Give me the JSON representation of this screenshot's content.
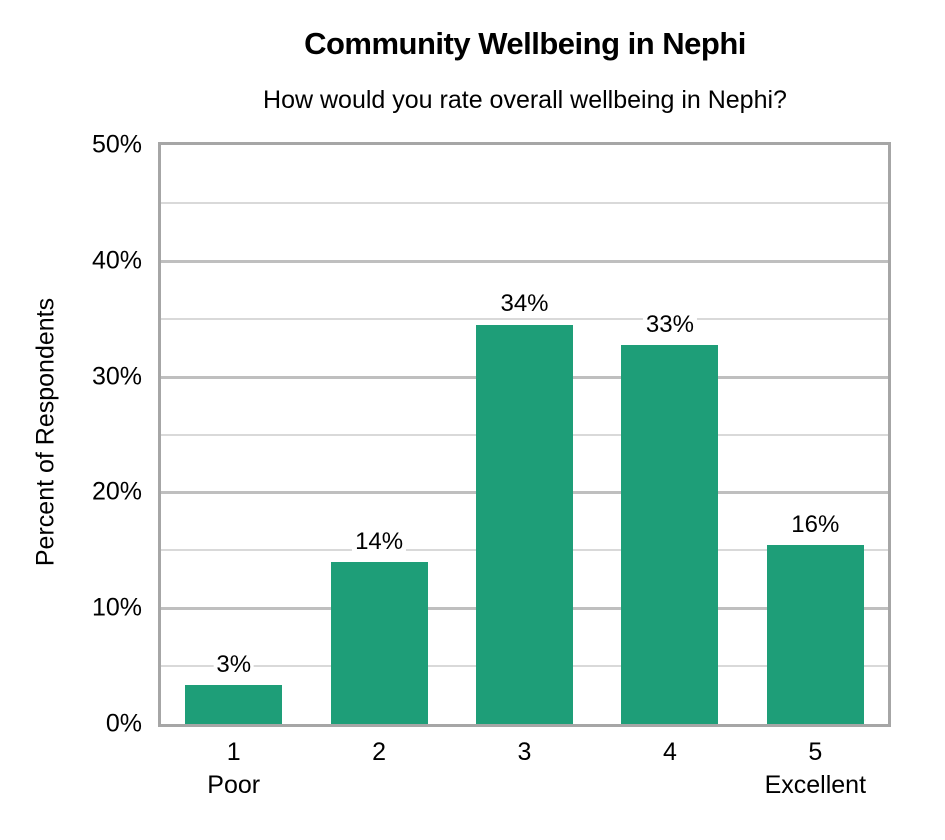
{
  "chart_data": {
    "type": "bar",
    "title": "Community Wellbeing in Nephi",
    "subtitle": "How would you rate overall wellbeing in Nephi?",
    "xlabel": "",
    "ylabel": "Percent of Respondents",
    "categories": [
      "1",
      "2",
      "3",
      "4",
      "5"
    ],
    "category_sublabels": [
      "Poor",
      "",
      "",
      "",
      "Excellent"
    ],
    "values": [
      3.4,
      14.0,
      34.5,
      32.7,
      15.5
    ],
    "data_labels": [
      "3%",
      "14%",
      "34%",
      "33%",
      "16%"
    ],
    "ylim": [
      0,
      50
    ],
    "yticks": [
      "0%",
      "10%",
      "20%",
      "30%",
      "40%",
      "50%"
    ],
    "grid": true,
    "legend": null,
    "bar_color": "#1e9e78"
  }
}
